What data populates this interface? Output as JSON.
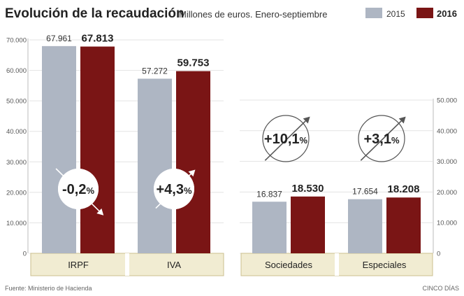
{
  "title": "Evolución de la recaudación",
  "subtitle": "Millones de euros. Enero-septiembre",
  "source": "Fuente: Ministerio de Hacienda",
  "credit": "CINCO DÍAS",
  "colors": {
    "s2015": "#aeb6c3",
    "s2016": "#7a1515",
    "band": "#f1ecd2",
    "band_border": "#cbbf8f"
  },
  "chart_data": [
    {
      "type": "bar",
      "categories": [
        "IRPF",
        "IVA"
      ],
      "series": [
        {
          "name": "2015",
          "values": [
            67961,
            57272
          ],
          "labels": [
            "67.961",
            "57.272"
          ]
        },
        {
          "name": "2016",
          "values": [
            67813,
            59753
          ],
          "labels": [
            "67.813",
            "59.753"
          ]
        }
      ],
      "change_labels": [
        "-0,2",
        "+4,3"
      ],
      "change_unit": "%",
      "change_direction": [
        "down",
        "up"
      ],
      "ylim": [
        0,
        70000
      ],
      "yticks": [
        0,
        10000,
        20000,
        30000,
        40000,
        50000,
        60000,
        70000
      ],
      "ytick_labels": [
        "0",
        "10.000",
        "20.000",
        "30.000",
        "40.000",
        "50.000",
        "60.000",
        "70.000"
      ],
      "yaxis_side": "left"
    },
    {
      "type": "bar",
      "categories": [
        "Sociedades",
        "Especiales"
      ],
      "series": [
        {
          "name": "2015",
          "values": [
            16837,
            17654
          ],
          "labels": [
            "16.837",
            "17.654"
          ]
        },
        {
          "name": "2016",
          "values": [
            18530,
            18208
          ],
          "labels": [
            "18.530",
            "18.208"
          ]
        }
      ],
      "change_labels": [
        "+10,1",
        "+3,1"
      ],
      "change_unit": "%",
      "change_direction": [
        "up",
        "up"
      ],
      "ylim": [
        0,
        50000
      ],
      "yticks": [
        0,
        10000,
        20000,
        30000,
        40000,
        50000
      ],
      "ytick_labels": [
        "0",
        "10.000",
        "20.000",
        "30.000",
        "40.000",
        "50.000"
      ],
      "yaxis_side": "right"
    }
  ],
  "legend": {
    "placement": "top-right",
    "items": [
      "2015",
      "2016"
    ]
  }
}
